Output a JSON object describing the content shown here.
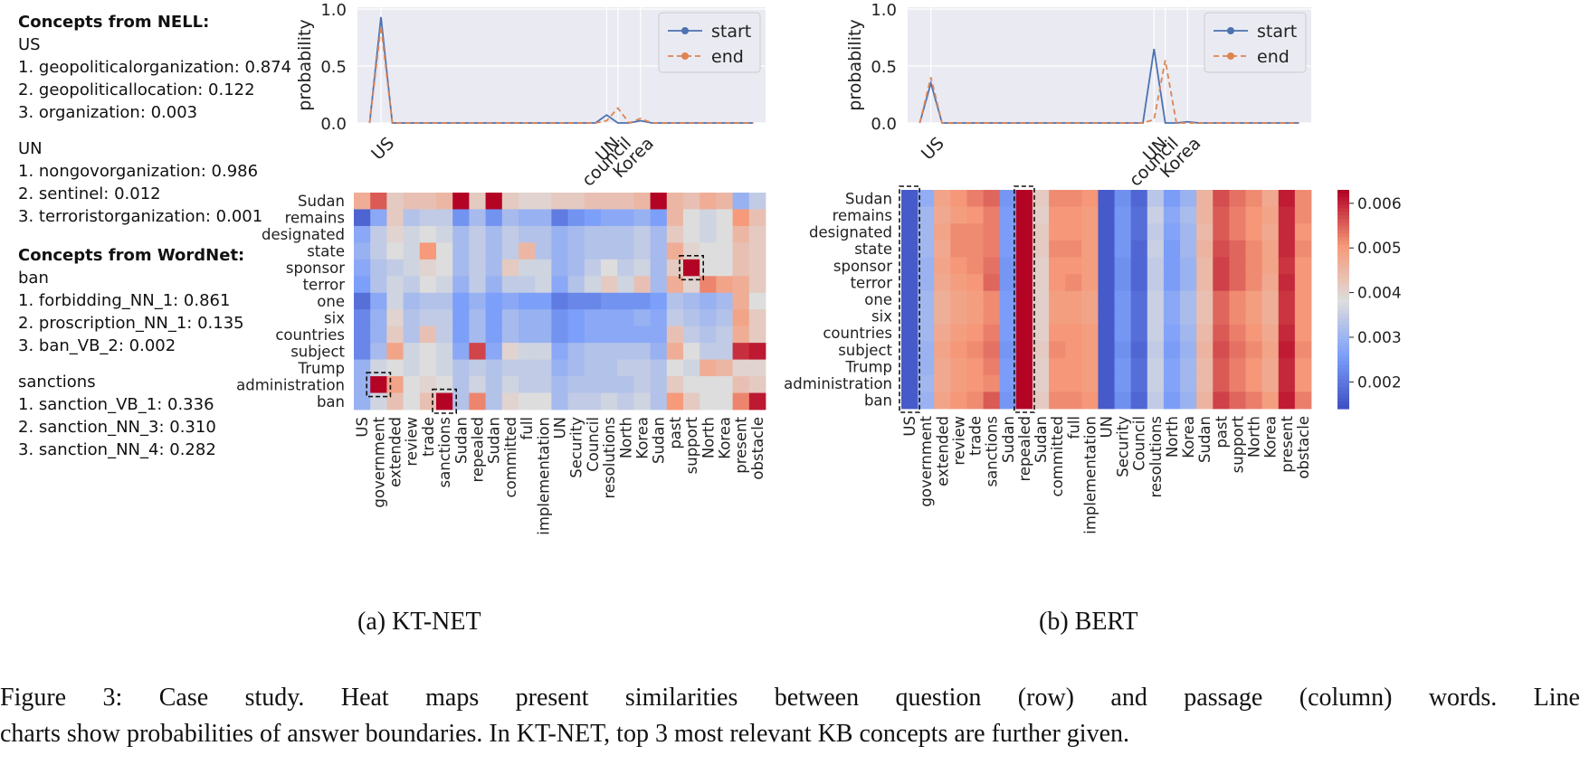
{
  "concepts": {
    "nell_heading": "Concepts from NELL:",
    "nell": [
      {
        "word": "US",
        "items": [
          "1. geopoliticalorganization: 0.874",
          "2. geopoliticallocation: 0.122",
          "3. organization: 0.003"
        ]
      },
      {
        "word": "UN",
        "items": [
          "1. nongovorganization: 0.986",
          "2. sentinel: 0.012",
          "3. terroristorganization: 0.001"
        ]
      }
    ],
    "wordnet_heading": "Concepts from WordNet:",
    "wordnet": [
      {
        "word": "ban",
        "items": [
          "1. forbidding_NN_1: 0.861",
          "2. proscription_NN_1: 0.135",
          "3. ban_VB_2: 0.002"
        ]
      },
      {
        "word": "sanctions",
        "items": [
          "1. sanction_VB_1: 0.336",
          "2. sanction_NN_3: 0.310",
          "3. sanction_NN_4: 0.282"
        ]
      }
    ]
  },
  "subcaptions": {
    "a": "(a)  KT-NET",
    "b": "(b)  BERT"
  },
  "caption": {
    "line1": "Figure 3:  Case study.  Heat maps present similarities between question (row) and passage (column) words.  Line",
    "line2": "charts show probabilities of answer boundaries. In KT-NET, top 3 most relevant KB concepts are further given."
  },
  "colors": {
    "start": "#4c72b0",
    "end": "#dd8452",
    "plot_bg": "#eaeaf2",
    "grid": "#ffffff"
  },
  "chart_data": [
    {
      "type": "line",
      "panel": "KT-NET",
      "ylabel": "probability",
      "ylim": [
        0,
        1
      ],
      "yticks": [
        0.0,
        0.5,
        1.0
      ],
      "grid": true,
      "legend": "top-right",
      "xtick_labels": [
        {
          "pos": 1,
          "label": "US"
        },
        {
          "pos": 21,
          "label": "UN"
        },
        {
          "pos": 22,
          "label": "council"
        },
        {
          "pos": 24,
          "label": "Korea"
        }
      ],
      "series": [
        {
          "name": "start",
          "values": [
            0,
            0.93,
            0,
            0,
            0,
            0,
            0,
            0,
            0,
            0,
            0,
            0,
            0,
            0,
            0,
            0,
            0,
            0,
            0,
            0,
            0,
            0.07,
            0,
            0,
            0.02,
            0,
            0,
            0,
            0,
            0,
            0,
            0,
            0,
            0,
            0
          ]
        },
        {
          "name": "end",
          "values": [
            0,
            0.85,
            0,
            0,
            0,
            0,
            0,
            0,
            0,
            0,
            0,
            0,
            0,
            0,
            0,
            0,
            0,
            0,
            0,
            0,
            0,
            0.02,
            0.13,
            0,
            0.04,
            0,
            0,
            0,
            0,
            0,
            0,
            0,
            0,
            0,
            0
          ]
        }
      ]
    },
    {
      "type": "line",
      "panel": "BERT",
      "ylabel": "probability",
      "ylim": [
        0,
        1
      ],
      "yticks": [
        0.0,
        0.5,
        1.0
      ],
      "grid": true,
      "legend": "top-right",
      "xtick_labels": [
        {
          "pos": 1,
          "label": "US"
        },
        {
          "pos": 21,
          "label": "UN"
        },
        {
          "pos": 22,
          "label": "council"
        },
        {
          "pos": 24,
          "label": "Korea"
        }
      ],
      "series": [
        {
          "name": "start",
          "values": [
            0,
            0.35,
            0,
            0,
            0,
            0,
            0,
            0,
            0,
            0,
            0,
            0,
            0,
            0,
            0,
            0,
            0,
            0,
            0,
            0,
            0,
            0.65,
            0,
            0,
            0.01,
            0,
            0,
            0,
            0,
            0,
            0,
            0,
            0,
            0,
            0
          ]
        },
        {
          "name": "end",
          "values": [
            0,
            0.4,
            0,
            0,
            0,
            0,
            0,
            0,
            0,
            0,
            0,
            0,
            0,
            0,
            0,
            0,
            0,
            0,
            0,
            0,
            0,
            0.03,
            0.55,
            0,
            0,
            0,
            0,
            0,
            0,
            0,
            0,
            0,
            0,
            0,
            0
          ]
        }
      ]
    },
    {
      "type": "heatmap",
      "panel": "KT-NET",
      "rows": [
        "Sudan",
        "remains",
        "designated",
        "state",
        "sponsor",
        "terror",
        "one",
        "six",
        "countries",
        "subject",
        "Trump",
        "administration",
        "ban"
      ],
      "columns": [
        "US",
        "government",
        "extended",
        "review",
        "trade",
        "sanctions",
        "Sudan",
        "repealed",
        "Sudan",
        "committed",
        "full",
        "implementation",
        "UN",
        "Security",
        "Council",
        "resolutions",
        "North",
        "Korea",
        "Sudan",
        "past",
        "support",
        "North",
        "Korea",
        "present",
        "obstacle"
      ],
      "highlighted_cells": [
        {
          "row": "sponsor",
          "column": "support"
        },
        {
          "row": "administration",
          "column": "government"
        },
        {
          "row": "ban",
          "column": "sanctions"
        }
      ],
      "values": [
        [
          0.0055,
          0.006,
          0.0052,
          0.0053,
          0.0053,
          0.0054,
          0.0064,
          0.0052,
          0.0064,
          0.0052,
          0.0051,
          0.0051,
          0.0052,
          0.0052,
          0.0053,
          0.0053,
          0.0053,
          0.0054,
          0.0064,
          0.0054,
          0.0053,
          0.0055,
          0.0054,
          0.0045,
          0.0048
        ],
        [
          0.0038,
          0.0044,
          0.0052,
          0.0047,
          0.0048,
          0.0048,
          0.0042,
          0.0046,
          0.0042,
          0.0046,
          0.0045,
          0.0045,
          0.004,
          0.0042,
          0.0043,
          0.0044,
          0.0044,
          0.0045,
          0.0043,
          0.0054,
          0.005,
          0.0049,
          0.005,
          0.0057,
          0.0053
        ],
        [
          0.0044,
          0.0048,
          0.0051,
          0.0049,
          0.005,
          0.0049,
          0.0046,
          0.0048,
          0.0046,
          0.0048,
          0.0047,
          0.0047,
          0.0045,
          0.0046,
          0.0047,
          0.0047,
          0.0047,
          0.0048,
          0.0046,
          0.0052,
          0.005,
          0.0049,
          0.005,
          0.0054,
          0.0052
        ],
        [
          0.0045,
          0.0048,
          0.005,
          0.0049,
          0.0057,
          0.005,
          0.0046,
          0.0048,
          0.0046,
          0.0048,
          0.0054,
          0.0047,
          0.0045,
          0.0046,
          0.0047,
          0.0047,
          0.0047,
          0.0048,
          0.0046,
          0.0055,
          0.0051,
          0.005,
          0.005,
          0.0053,
          0.0052
        ],
        [
          0.0044,
          0.0047,
          0.0048,
          0.0049,
          0.0051,
          0.005,
          0.0046,
          0.0048,
          0.0046,
          0.0052,
          0.0049,
          0.0049,
          0.0045,
          0.0046,
          0.0048,
          0.005,
          0.0048,
          0.0049,
          0.0046,
          0.0052,
          0.0064,
          0.005,
          0.005,
          0.0053,
          0.0052
        ],
        [
          0.0043,
          0.0047,
          0.0049,
          0.0048,
          0.005,
          0.0049,
          0.0045,
          0.0048,
          0.0045,
          0.0048,
          0.0048,
          0.0049,
          0.0044,
          0.0047,
          0.0049,
          0.0052,
          0.0049,
          0.0053,
          0.0046,
          0.0055,
          0.0051,
          0.0058,
          0.0056,
          0.0055,
          0.0052
        ],
        [
          0.0039,
          0.0044,
          0.0049,
          0.0046,
          0.0047,
          0.0047,
          0.0043,
          0.0045,
          0.0043,
          0.0044,
          0.0043,
          0.0043,
          0.004,
          0.0041,
          0.0041,
          0.0042,
          0.0042,
          0.0042,
          0.0043,
          0.0047,
          0.0046,
          0.0045,
          0.0046,
          0.0055,
          0.005
        ],
        [
          0.0041,
          0.0045,
          0.0051,
          0.0047,
          0.0048,
          0.0048,
          0.0043,
          0.0046,
          0.0043,
          0.0046,
          0.0045,
          0.0045,
          0.0042,
          0.0043,
          0.0044,
          0.0044,
          0.0044,
          0.0045,
          0.0044,
          0.0048,
          0.0047,
          0.0046,
          0.0047,
          0.0056,
          0.0052
        ],
        [
          0.0041,
          0.0045,
          0.0052,
          0.0047,
          0.0053,
          0.0048,
          0.0043,
          0.0046,
          0.0043,
          0.0046,
          0.0045,
          0.0045,
          0.0042,
          0.0043,
          0.0044,
          0.0044,
          0.0044,
          0.0044,
          0.0044,
          0.0053,
          0.0048,
          0.0047,
          0.0048,
          0.0055,
          0.0052
        ],
        [
          0.0041,
          0.0046,
          0.0056,
          0.0049,
          0.005,
          0.0049,
          0.0044,
          0.0061,
          0.0044,
          0.0051,
          0.0049,
          0.0049,
          0.0044,
          0.0046,
          0.0047,
          0.0047,
          0.0047,
          0.0047,
          0.0045,
          0.0055,
          0.005,
          0.0048,
          0.0048,
          0.0062,
          0.0063
        ],
        [
          0.0045,
          0.0049,
          0.005,
          0.0049,
          0.005,
          0.0049,
          0.0047,
          0.0048,
          0.0047,
          0.0048,
          0.0048,
          0.0048,
          0.0045,
          0.0046,
          0.0047,
          0.0047,
          0.0048,
          0.0048,
          0.0047,
          0.005,
          0.0049,
          0.0055,
          0.0054,
          0.0051,
          0.0051
        ],
        [
          0.0045,
          0.0064,
          0.0056,
          0.005,
          0.0051,
          0.005,
          0.0047,
          0.0049,
          0.0047,
          0.0049,
          0.0048,
          0.0048,
          0.0046,
          0.0047,
          0.0047,
          0.0047,
          0.0047,
          0.0048,
          0.0047,
          0.0052,
          0.005,
          0.005,
          0.005,
          0.0053,
          0.0052
        ],
        [
          0.0045,
          0.0049,
          0.0053,
          0.005,
          0.0053,
          0.0064,
          0.0047,
          0.0058,
          0.0047,
          0.0051,
          0.005,
          0.005,
          0.0046,
          0.0048,
          0.0048,
          0.0049,
          0.0048,
          0.0049,
          0.0047,
          0.0057,
          0.0052,
          0.005,
          0.005,
          0.0058,
          0.0063
        ]
      ]
    },
    {
      "type": "heatmap",
      "panel": "BERT",
      "rows": [
        "Sudan",
        "remains",
        "designated",
        "state",
        "sponsor",
        "terror",
        "one",
        "six",
        "countries",
        "subject",
        "Trump",
        "administration",
        "ban"
      ],
      "columns": [
        "US",
        "government",
        "extended",
        "review",
        "trade",
        "sanctions",
        "Sudan",
        "repealed",
        "Sudan",
        "committed",
        "full",
        "implementation",
        "UN",
        "Security",
        "Council",
        "resolutions",
        "North",
        "Korea",
        "Sudan",
        "past",
        "support",
        "North",
        "Korea",
        "present",
        "obstacle"
      ],
      "highlighted_columns": [
        "US",
        "repealed"
      ],
      "colorbar": {
        "ticks": [
          0.002,
          0.003,
          0.004,
          0.005,
          0.006
        ],
        "range": [
          0.0014,
          0.0063
        ]
      },
      "values": [
        [
          0.0016,
          0.0029,
          0.0049,
          0.0051,
          0.0053,
          0.0055,
          0.0025,
          0.0064,
          0.0042,
          0.0052,
          0.0052,
          0.0051,
          0.0016,
          0.0024,
          0.0018,
          0.0034,
          0.0026,
          0.003,
          0.0046,
          0.0057,
          0.0054,
          0.0052,
          0.0048,
          0.0061,
          0.0052
        ],
        [
          0.0016,
          0.0031,
          0.0048,
          0.005,
          0.0051,
          0.0053,
          0.0026,
          0.0064,
          0.0041,
          0.0051,
          0.0051,
          0.005,
          0.0016,
          0.0025,
          0.0019,
          0.0036,
          0.0028,
          0.0032,
          0.0046,
          0.0056,
          0.0053,
          0.0051,
          0.0049,
          0.006,
          0.0052
        ],
        [
          0.0016,
          0.0031,
          0.0049,
          0.0052,
          0.0052,
          0.0053,
          0.0026,
          0.0063,
          0.0042,
          0.0051,
          0.0051,
          0.005,
          0.0016,
          0.0025,
          0.0019,
          0.0035,
          0.0027,
          0.0031,
          0.0045,
          0.0056,
          0.0053,
          0.0051,
          0.0048,
          0.006,
          0.0051
        ],
        [
          0.0016,
          0.0031,
          0.0048,
          0.0052,
          0.0052,
          0.0053,
          0.0026,
          0.0064,
          0.0042,
          0.0052,
          0.0052,
          0.005,
          0.0016,
          0.0025,
          0.0018,
          0.0036,
          0.0026,
          0.0031,
          0.0046,
          0.0057,
          0.0055,
          0.0052,
          0.0049,
          0.006,
          0.0052
        ],
        [
          0.0016,
          0.003,
          0.0049,
          0.0051,
          0.0052,
          0.0054,
          0.0025,
          0.0063,
          0.0041,
          0.0051,
          0.0051,
          0.005,
          0.0016,
          0.0024,
          0.0018,
          0.0035,
          0.0026,
          0.003,
          0.0045,
          0.0058,
          0.0055,
          0.0052,
          0.0049,
          0.0059,
          0.0051
        ],
        [
          0.0016,
          0.003,
          0.0048,
          0.005,
          0.0051,
          0.0055,
          0.0025,
          0.0064,
          0.0041,
          0.0051,
          0.0052,
          0.005,
          0.0016,
          0.0024,
          0.0018,
          0.0035,
          0.0026,
          0.003,
          0.0045,
          0.0058,
          0.0055,
          0.0052,
          0.0048,
          0.006,
          0.0051
        ],
        [
          0.0016,
          0.0031,
          0.0047,
          0.0049,
          0.005,
          0.0052,
          0.0026,
          0.0063,
          0.0041,
          0.005,
          0.005,
          0.0049,
          0.0016,
          0.0025,
          0.0019,
          0.0036,
          0.0028,
          0.0032,
          0.0044,
          0.0055,
          0.0052,
          0.005,
          0.0047,
          0.0059,
          0.0051
        ],
        [
          0.0016,
          0.0031,
          0.0047,
          0.0049,
          0.005,
          0.0052,
          0.0026,
          0.0063,
          0.0041,
          0.005,
          0.005,
          0.0049,
          0.0016,
          0.0025,
          0.0019,
          0.0036,
          0.0028,
          0.0032,
          0.0044,
          0.0055,
          0.0052,
          0.005,
          0.0047,
          0.0059,
          0.0051
        ],
        [
          0.0016,
          0.0031,
          0.0048,
          0.005,
          0.0051,
          0.0053,
          0.0026,
          0.0063,
          0.0041,
          0.0051,
          0.0051,
          0.005,
          0.0016,
          0.0025,
          0.0019,
          0.0036,
          0.0027,
          0.0031,
          0.0045,
          0.0056,
          0.0053,
          0.0051,
          0.0048,
          0.006,
          0.0051
        ],
        [
          0.0016,
          0.003,
          0.0049,
          0.0051,
          0.0052,
          0.0054,
          0.0025,
          0.0064,
          0.0042,
          0.0052,
          0.0051,
          0.005,
          0.0016,
          0.0024,
          0.0018,
          0.0035,
          0.0026,
          0.003,
          0.0046,
          0.0057,
          0.0054,
          0.0052,
          0.0049,
          0.0061,
          0.0052
        ],
        [
          0.0016,
          0.003,
          0.0048,
          0.005,
          0.0051,
          0.0053,
          0.0026,
          0.0063,
          0.0041,
          0.0051,
          0.0051,
          0.005,
          0.0016,
          0.0025,
          0.0019,
          0.0036,
          0.0027,
          0.0031,
          0.0045,
          0.0056,
          0.0053,
          0.0051,
          0.0048,
          0.006,
          0.0051
        ],
        [
          0.0016,
          0.0031,
          0.0048,
          0.005,
          0.0051,
          0.0052,
          0.0026,
          0.0063,
          0.0041,
          0.0051,
          0.0051,
          0.005,
          0.0016,
          0.0025,
          0.0019,
          0.0036,
          0.0027,
          0.0031,
          0.0045,
          0.0056,
          0.0053,
          0.0051,
          0.0048,
          0.006,
          0.0051
        ],
        [
          0.0016,
          0.003,
          0.0049,
          0.0051,
          0.0052,
          0.0056,
          0.0025,
          0.0064,
          0.0042,
          0.0052,
          0.0052,
          0.0051,
          0.0016,
          0.0024,
          0.0018,
          0.0035,
          0.0026,
          0.003,
          0.0046,
          0.0058,
          0.0055,
          0.0053,
          0.005,
          0.0061,
          0.0053
        ]
      ]
    }
  ]
}
